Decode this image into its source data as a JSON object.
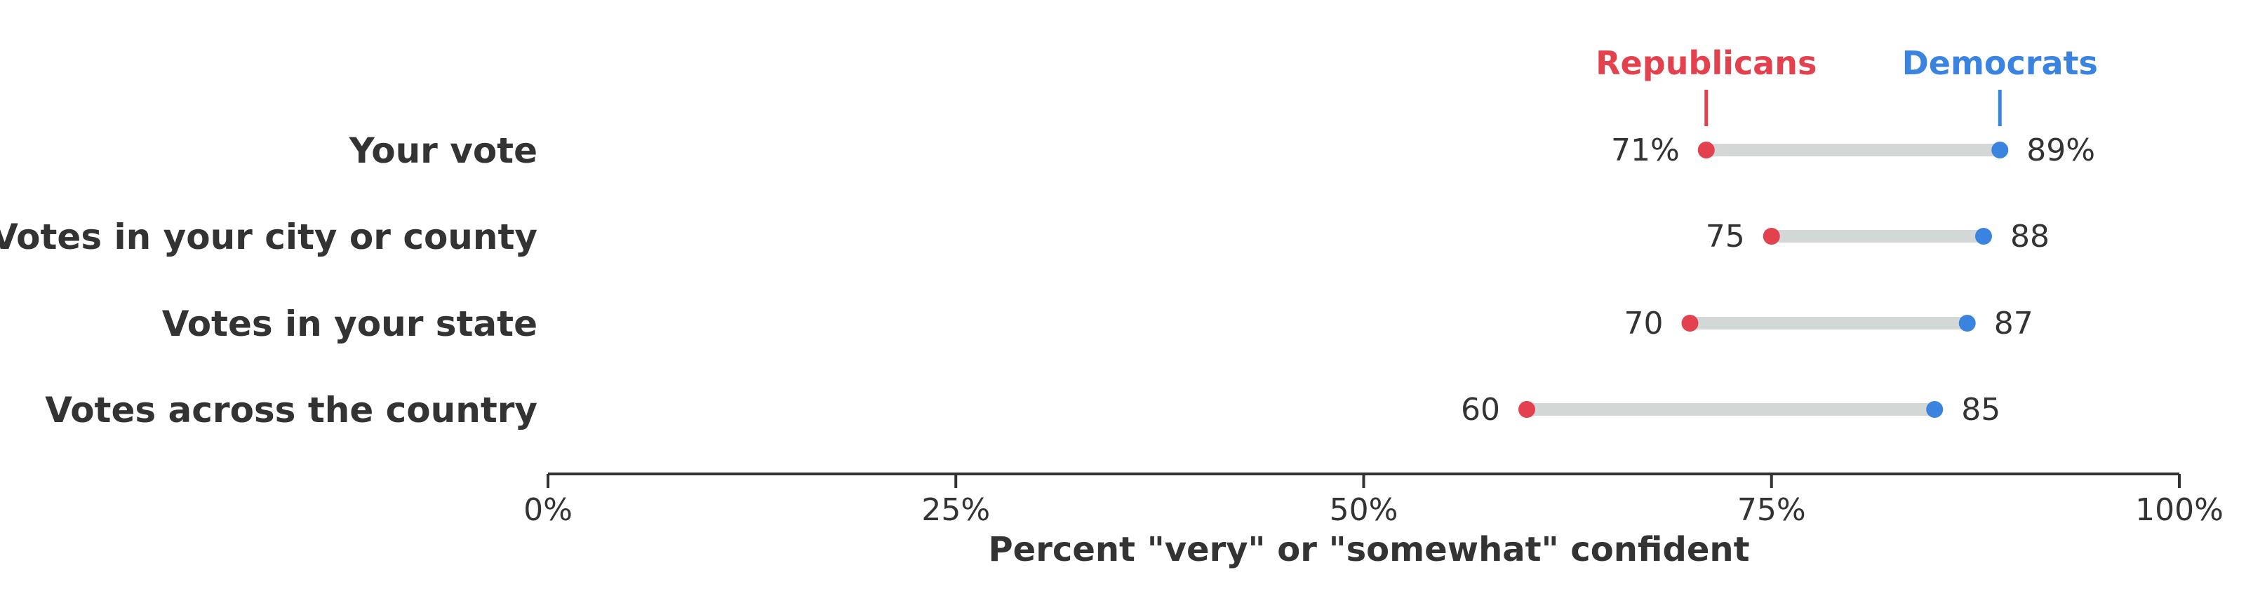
{
  "chart_data": {
    "type": "dot_range",
    "categories": [
      "Your vote",
      "Votes in your city or county",
      "Votes in your state",
      "Votes across the country"
    ],
    "series": [
      {
        "name": "Republicans",
        "color": "#e4414e",
        "values": [
          71,
          75,
          70,
          60
        ],
        "labels": [
          "71%",
          "75",
          "70",
          "60"
        ]
      },
      {
        "name": "Democrats",
        "color": "#3a84e0",
        "values": [
          89,
          88,
          87,
          85
        ],
        "labels": [
          "89%",
          "88",
          "87",
          "85"
        ]
      }
    ],
    "xlabel": "Percent \"very\" or \"somewhat\" confident",
    "xlim": [
      0,
      100
    ],
    "xticks": [
      0,
      25,
      50,
      75,
      100
    ],
    "xtick_labels": [
      "0%",
      "25%",
      "50%",
      "75%",
      "100%"
    ],
    "range_bar_color": "#d3d7d6",
    "axis_color": "#333333"
  }
}
